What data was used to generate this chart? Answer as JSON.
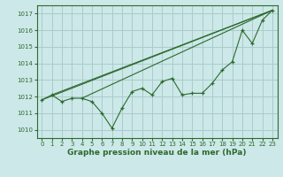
{
  "background_color": "#cce8e8",
  "grid_color": "#aacccc",
  "line_color": "#2d6a2d",
  "marker_color": "#2d6a2d",
  "xlabel": "Graphe pression niveau de la mer (hPa)",
  "xlim": [
    -0.5,
    23.5
  ],
  "ylim": [
    1009.5,
    1017.5
  ],
  "yticks": [
    1010,
    1011,
    1012,
    1013,
    1014,
    1015,
    1016,
    1017
  ],
  "xticks": [
    0,
    1,
    2,
    3,
    4,
    5,
    6,
    7,
    8,
    9,
    10,
    11,
    12,
    13,
    14,
    15,
    16,
    17,
    18,
    19,
    20,
    21,
    22,
    23
  ],
  "series1_x": [
    0,
    1,
    2,
    3,
    4,
    5,
    6,
    7,
    8,
    9,
    10,
    11,
    12,
    13,
    14,
    15,
    16,
    17,
    18,
    19,
    20,
    21,
    22,
    23
  ],
  "series1_y": [
    1011.8,
    1012.1,
    1011.7,
    1011.9,
    1011.9,
    1011.7,
    1011.0,
    1010.1,
    1011.3,
    1012.3,
    1012.5,
    1012.1,
    1012.9,
    1013.1,
    1012.1,
    1012.2,
    1012.2,
    1012.8,
    1013.6,
    1014.1,
    1016.0,
    1015.2,
    1016.6,
    1017.2
  ],
  "series2_x": [
    0,
    23
  ],
  "series2_y": [
    1011.8,
    1017.2
  ],
  "series3_x": [
    1,
    23
  ],
  "series3_y": [
    1012.1,
    1017.2
  ],
  "series4_x": [
    4,
    23
  ],
  "series4_y": [
    1011.9,
    1017.2
  ],
  "tick_fontsize": 5.0,
  "xlabel_fontsize": 6.5
}
